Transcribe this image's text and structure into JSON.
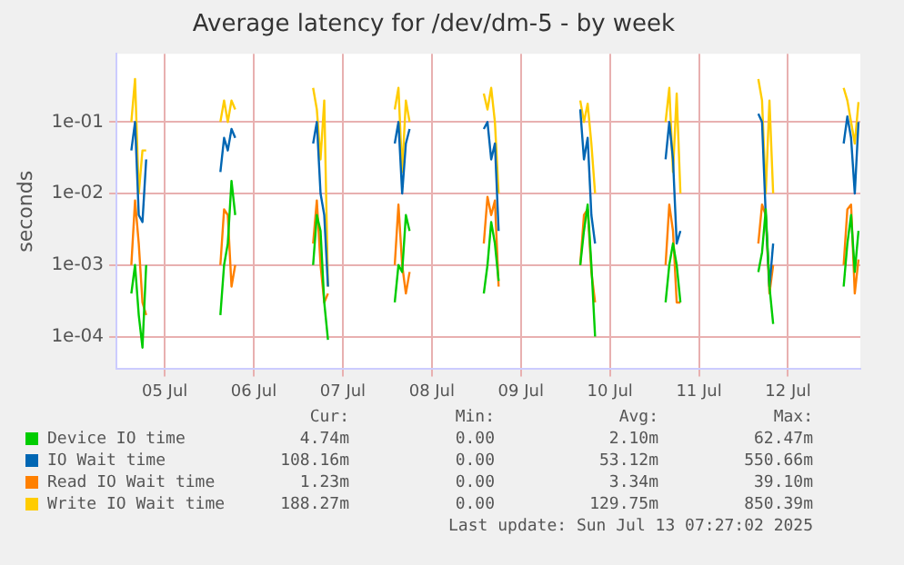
{
  "chart_data": {
    "type": "line",
    "title": "Average latency for /dev/dm-5 - by week",
    "ylabel": "seconds",
    "x": [
      "2025-07-05T03:00",
      "2025-07-05T04:00",
      "2025-07-05T05:00",
      "2025-07-05T06:00",
      "2025-07-05T07:00",
      "2025-07-05T12:00",
      "2025-07-06T03:00",
      "2025-07-06T04:00",
      "2025-07-06T05:00",
      "2025-07-06T06:00",
      "2025-07-06T07:00",
      "2025-07-06T12:00",
      "2025-07-07T04:00",
      "2025-07-07T05:00",
      "2025-07-07T06:00",
      "2025-07-07T07:00",
      "2025-07-07T08:00",
      "2025-07-07T12:00",
      "2025-07-08T02:00",
      "2025-07-08T03:00",
      "2025-07-08T04:00",
      "2025-07-08T05:00",
      "2025-07-08T06:00",
      "2025-07-08T12:00",
      "2025-07-09T02:00",
      "2025-07-09T03:00",
      "2025-07-09T04:00",
      "2025-07-09T05:00",
      "2025-07-09T06:00",
      "2025-07-09T12:00",
      "2025-07-10T04:00",
      "2025-07-10T05:00",
      "2025-07-10T06:00",
      "2025-07-10T07:00",
      "2025-07-10T08:00",
      "2025-07-10T12:00",
      "2025-07-11T03:00",
      "2025-07-11T04:00",
      "2025-07-11T05:00",
      "2025-07-11T06:00",
      "2025-07-11T07:00",
      "2025-07-11T12:00",
      "2025-07-12T04:00",
      "2025-07-12T05:00",
      "2025-07-12T06:00",
      "2025-07-12T07:00",
      "2025-07-12T08:00",
      "2025-07-12T12:00",
      "2025-07-13T03:00",
      "2025-07-13T04:00",
      "2025-07-13T05:00",
      "2025-07-13T06:00",
      "2025-07-13T07:00"
    ],
    "series": [
      {
        "name": "Device IO time",
        "color": "#00cc00",
        "values": [
          0.0004,
          0.001,
          0.0002,
          7e-05,
          0.001,
          null,
          0.0002,
          0.001,
          0.002,
          0.015,
          0.005,
          null,
          0.001,
          0.005,
          0.003,
          0.0003,
          9e-05,
          null,
          0.0003,
          0.001,
          0.0008,
          0.005,
          0.003,
          null,
          0.0004,
          0.001,
          0.004,
          0.002,
          0.0006,
          null,
          0.001,
          0.003,
          0.007,
          0.001,
          0.0001,
          null,
          0.0003,
          0.001,
          0.002,
          0.001,
          0.0003,
          null,
          0.0008,
          0.0015,
          0.006,
          0.0005,
          0.00015,
          null,
          0.0005,
          0.002,
          0.005,
          0.0008,
          0.003
        ]
      },
      {
        "name": "IO Wait time",
        "color": "#0066b3",
        "values": [
          0.04,
          0.1,
          0.005,
          0.004,
          0.03,
          null,
          0.02,
          0.06,
          0.04,
          0.08,
          0.06,
          null,
          0.05,
          0.1,
          0.01,
          0.005,
          0.0005,
          null,
          0.05,
          0.1,
          0.01,
          0.05,
          0.08,
          null,
          0.08,
          0.1,
          0.03,
          0.05,
          0.003,
          null,
          0.15,
          0.03,
          0.06,
          0.005,
          0.002,
          null,
          0.03,
          0.1,
          0.03,
          0.002,
          0.003,
          null,
          0.13,
          0.1,
          0.005,
          0.0005,
          0.002,
          null,
          0.05,
          0.12,
          0.06,
          0.01,
          0.1
        ]
      },
      {
        "name": "Read IO Wait time",
        "color": "#ff8000",
        "values": [
          0.001,
          0.008,
          0.002,
          0.0003,
          0.0002,
          null,
          0.001,
          0.006,
          0.005,
          0.0005,
          0.001,
          null,
          0.002,
          0.008,
          0.001,
          0.0003,
          0.0004,
          null,
          0.001,
          0.007,
          0.001,
          0.0004,
          0.0008,
          null,
          0.002,
          0.009,
          0.005,
          0.008,
          0.0005,
          null,
          0.001,
          0.005,
          0.006,
          0.0008,
          0.0003,
          null,
          0.001,
          0.007,
          0.003,
          0.0003,
          0.0003,
          null,
          0.002,
          0.007,
          0.005,
          0.0004,
          0.001,
          null,
          0.001,
          0.006,
          0.007,
          0.0004,
          0.0012
        ]
      },
      {
        "name": "Write IO Wait time",
        "color": "#ffcc00",
        "values": [
          0.1,
          0.4,
          0.01,
          0.04,
          0.04,
          null,
          0.1,
          0.2,
          0.1,
          0.2,
          0.15,
          null,
          0.3,
          0.15,
          0.03,
          0.2,
          0.0005,
          null,
          0.15,
          0.3,
          0.02,
          0.2,
          0.1,
          null,
          0.25,
          0.15,
          0.3,
          0.1,
          0.01,
          null,
          0.2,
          0.1,
          0.18,
          0.05,
          0.01,
          null,
          0.1,
          0.3,
          0.02,
          0.25,
          0.01,
          null,
          0.4,
          0.2,
          0.01,
          0.2,
          0.01,
          null,
          0.3,
          0.2,
          0.1,
          0.05,
          0.19
        ]
      }
    ],
    "ylim": [
      3.5e-05,
      0.9
    ],
    "log": true,
    "yticks": [
      {
        "value": 0.0001,
        "label": "1e-04"
      },
      {
        "value": 0.001,
        "label": "1e-03"
      },
      {
        "value": 0.01,
        "label": "1e-02"
      },
      {
        "value": 0.1,
        "label": "1e-01"
      }
    ],
    "xlim": [
      "2025-07-04T23:00",
      "2025-07-13T07:30"
    ],
    "xticks": [
      {
        "value": "2025-07-05T12:00",
        "label": "05 Jul"
      },
      {
        "value": "2025-07-06T12:00",
        "label": "06 Jul"
      },
      {
        "value": "2025-07-07T12:00",
        "label": "07 Jul"
      },
      {
        "value": "2025-07-08T12:00",
        "label": "08 Jul"
      },
      {
        "value": "2025-07-09T12:00",
        "label": "09 Jul"
      },
      {
        "value": "2025-07-10T12:00",
        "label": "10 Jul"
      },
      {
        "value": "2025-07-11T12:00",
        "label": "11 Jul"
      },
      {
        "value": "2025-07-12T12:00",
        "label": "12 Jul"
      }
    ],
    "grid": true,
    "legend": "bottom",
    "annotations": [
      "Cur:",
      "Min:",
      "Avg:",
      "Max:",
      "4.74m",
      "0.00",
      "2.10m",
      "62.47m",
      "108.16m",
      "0.00",
      "53.12m",
      "550.66m",
      "1.23m",
      "0.00",
      "3.34m",
      "39.10m",
      "188.27m",
      "0.00",
      "129.75m",
      "850.39m",
      "Last update: Sun Jul 13 07:27:02 2025"
    ]
  }
}
